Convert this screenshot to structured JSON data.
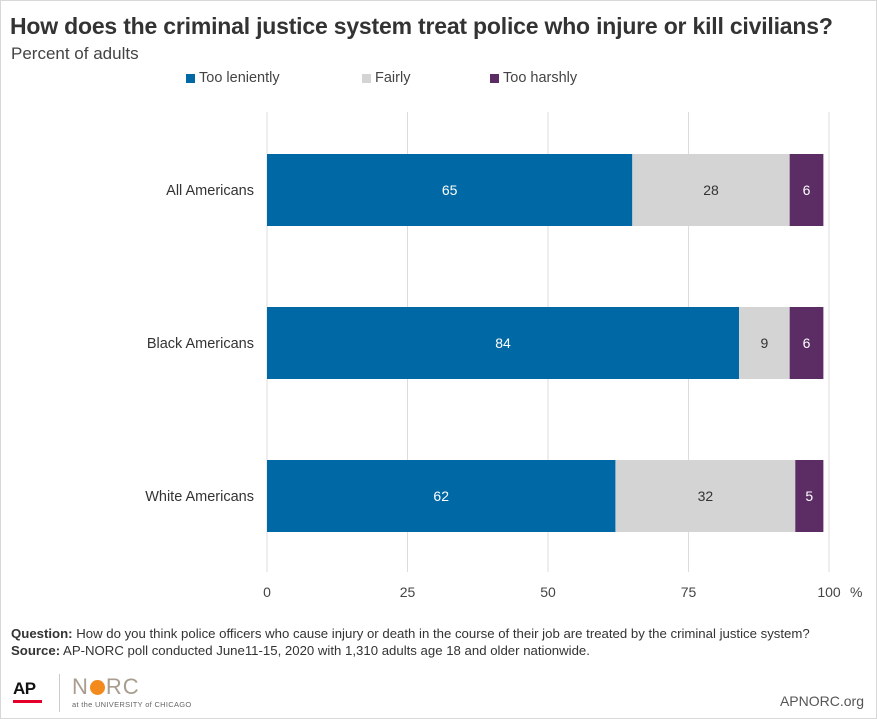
{
  "title": "How does the criminal justice system treat police who injure or kill civilians?",
  "subtitle": "Percent of adults",
  "colors": {
    "too_leniently": "#0069a5",
    "fairly": "#d4d4d4",
    "too_harshly": "#5b2d64",
    "grid": "#dcdcdc"
  },
  "chart_data": {
    "type": "bar",
    "orientation": "horizontal",
    "stacked": true,
    "categories": [
      "All Americans",
      "Black Americans",
      "White Americans"
    ],
    "series": [
      {
        "name": "Too leniently",
        "values": [
          65,
          84,
          62
        ]
      },
      {
        "name": "Fairly",
        "values": [
          28,
          9,
          32
        ]
      },
      {
        "name": "Too harshly",
        "values": [
          6,
          6,
          5
        ]
      }
    ],
    "xlim": [
      0,
      100
    ],
    "xticks": [
      "0",
      "25",
      "50",
      "75",
      "100"
    ],
    "unit_label": "%",
    "grid": true,
    "legend": "top"
  },
  "footer": {
    "question_label": "Question:",
    "question_text": " How do you think police officers who cause injury or death in the course of their job are treated by the criminal justice system?",
    "source_label": "Source:",
    "source_text": " AP-NORC poll conducted June11-15, 2020 with 1,310 adults age 18 and older nationwide."
  },
  "logos": {
    "ap": "AP",
    "norc_left": "N",
    "norc_right": "RC",
    "norc_sub": "at the UNIVERSITY of CHICAGO"
  },
  "url": "APNORC.org"
}
